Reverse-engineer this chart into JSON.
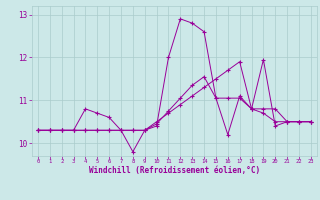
{
  "xlabel": "Windchill (Refroidissement éolien,°C)",
  "x": [
    0,
    1,
    2,
    3,
    4,
    5,
    6,
    7,
    8,
    9,
    10,
    11,
    12,
    13,
    14,
    15,
    16,
    17,
    18,
    19,
    20,
    21,
    22,
    23
  ],
  "series1": [
    10.3,
    10.3,
    10.3,
    10.3,
    10.8,
    10.7,
    10.6,
    10.3,
    9.8,
    10.3,
    10.4,
    12.0,
    12.9,
    12.8,
    12.6,
    11.05,
    10.2,
    11.1,
    10.8,
    11.95,
    10.4,
    10.5,
    10.5,
    10.5
  ],
  "series2": [
    10.3,
    10.3,
    10.3,
    10.3,
    10.3,
    10.3,
    10.3,
    10.3,
    10.3,
    10.3,
    10.45,
    10.75,
    11.05,
    11.35,
    11.55,
    11.05,
    11.05,
    11.05,
    10.8,
    10.8,
    10.8,
    10.5,
    10.5,
    10.5
  ],
  "series3": [
    10.3,
    10.3,
    10.3,
    10.3,
    10.3,
    10.3,
    10.3,
    10.3,
    10.3,
    10.3,
    10.5,
    10.7,
    10.9,
    11.1,
    11.3,
    11.5,
    11.7,
    11.9,
    10.8,
    10.7,
    10.5,
    10.5,
    10.5,
    10.5
  ],
  "line_color": "#990099",
  "bg_color": "#cce8e8",
  "grid_color": "#aacccc",
  "axis_color": "#990099",
  "ylim_min": 9.7,
  "ylim_max": 13.2,
  "yticks": [
    10,
    11,
    12,
    13
  ],
  "xlim_min": -0.5,
  "xlim_max": 23.5
}
